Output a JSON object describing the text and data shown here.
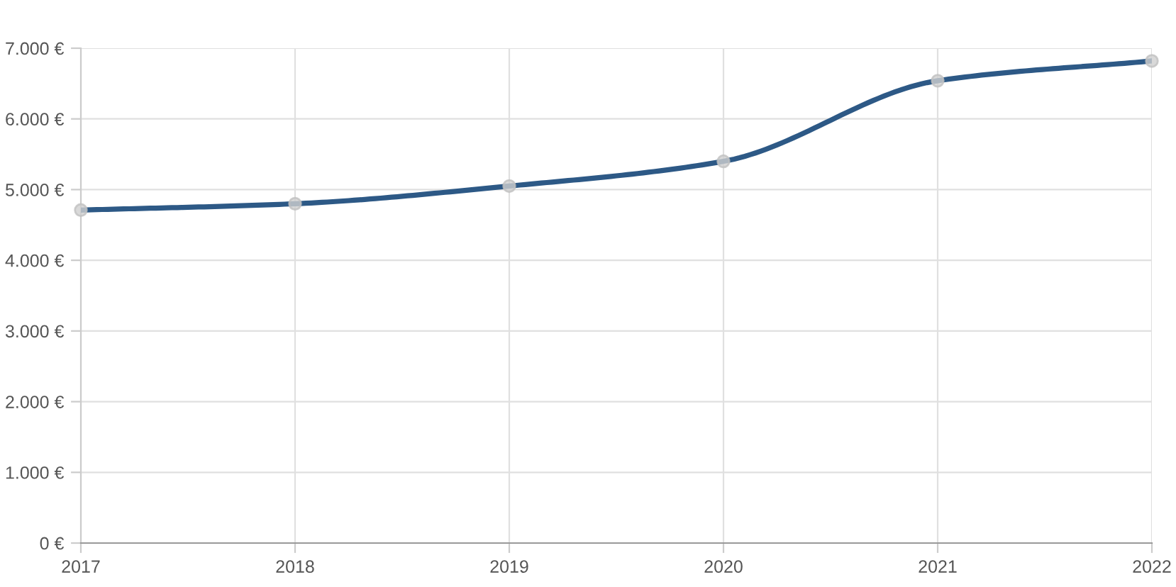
{
  "chart_data": {
    "type": "line",
    "x": [
      2017,
      2018,
      2019,
      2020,
      2021,
      2022
    ],
    "series": [
      {
        "color": "#2d5986",
        "values": [
          4710,
          4800,
          5050,
          5400,
          6540,
          6820
        ]
      }
    ],
    "xlim": [
      2017,
      2022
    ],
    "xticks": [
      2017,
      2018,
      2019,
      2020,
      2021,
      2022
    ],
    "ylim": [
      0,
      7000
    ],
    "yticks": [
      {
        "value": 0,
        "label": "0 €"
      },
      {
        "value": 1000,
        "label": "1.000 €"
      },
      {
        "value": 2000,
        "label": "2.000 €"
      },
      {
        "value": 3000,
        "label": "3.000 €"
      },
      {
        "value": 4000,
        "label": "4.000 €"
      },
      {
        "value": 5000,
        "label": "5.000 €"
      },
      {
        "value": 6000,
        "label": "6.000 €"
      },
      {
        "value": 7000,
        "label": "7.000 €"
      }
    ],
    "grid": true,
    "marker": "circle",
    "line_style": "solid"
  }
}
